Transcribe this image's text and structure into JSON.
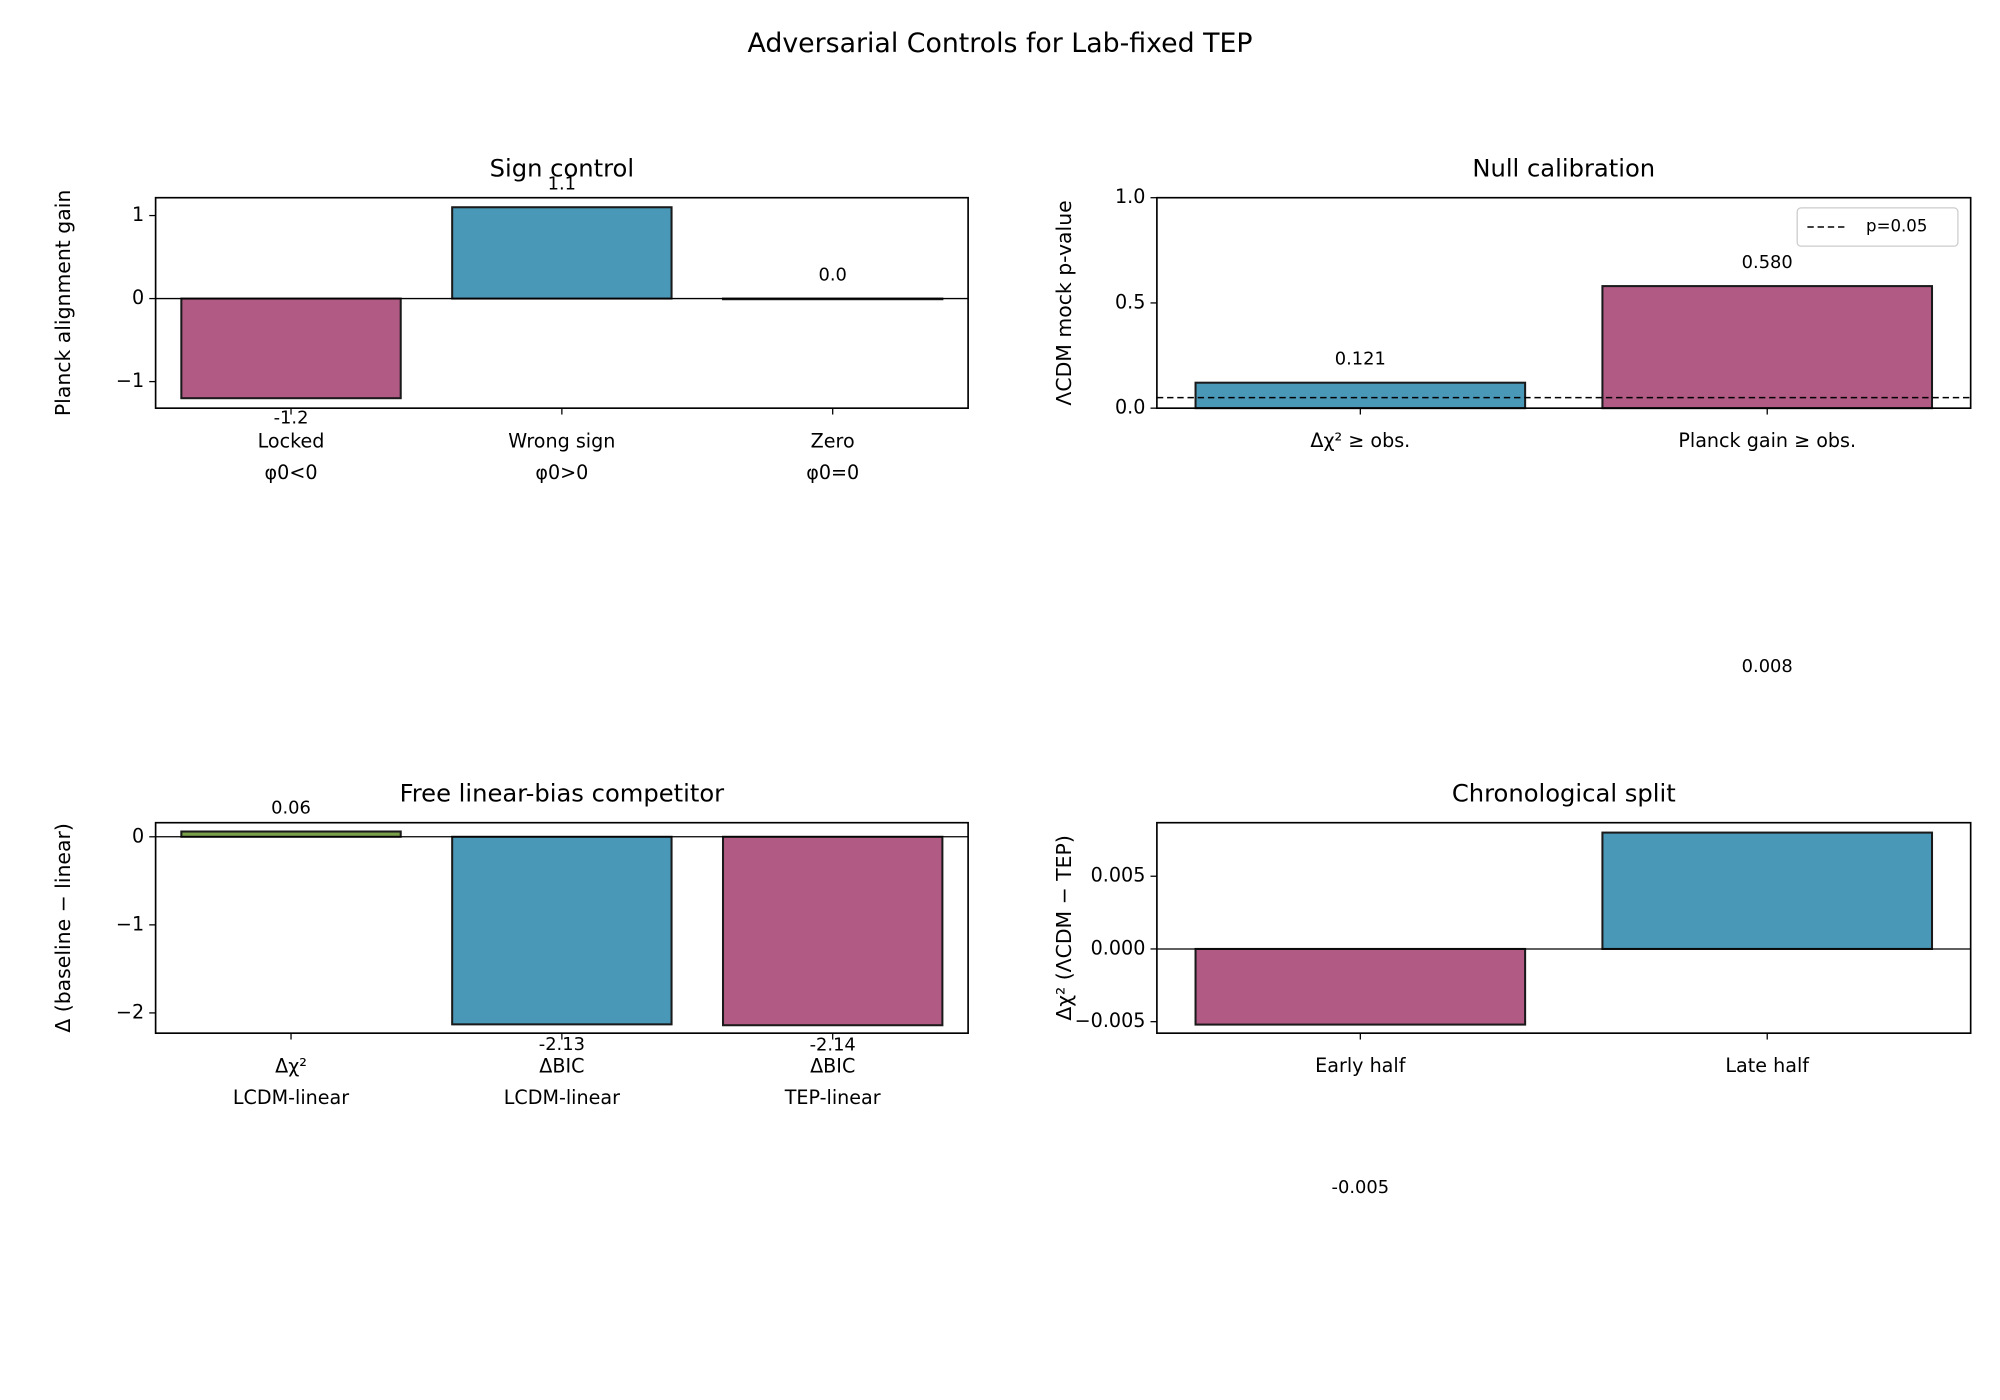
{
  "title": "Adversarial Controls for Lab-fixed TEP",
  "chart_data": [
    {
      "type": "bar",
      "title": "Sign control",
      "ylabel": "Planck alignment gain",
      "categories": [
        "Locked\nφ0<0",
        "Wrong sign\nφ0>0",
        "Zero\nφ0=0"
      ],
      "values": [
        -1.2,
        1.1,
        0.0
      ],
      "value_labels": [
        "-1.2",
        "1.1",
        "0.0"
      ],
      "colors": [
        "#b05a84",
        "#4a98b8",
        "#6a9a3a"
      ],
      "ylim": [
        -1.32,
        1.215
      ],
      "yticks": [
        {
          "value": -1,
          "label": "−1"
        },
        0,
        1
      ]
    },
    {
      "type": "bar",
      "title": "Null calibration",
      "ylabel": "ΛCDM mock p-value",
      "categories": [
        "Δχ² ≥ obs.",
        "Planck gain ≥ obs."
      ],
      "values": [
        0.121,
        0.58
      ],
      "value_labels": [
        "0.121",
        "0.580"
      ],
      "colors": [
        "#4a98b8",
        "#b05a84"
      ],
      "ylim": [
        0,
        1.0
      ],
      "yticks": [
        {
          "value": 0,
          "label": "0.0"
        },
        {
          "value": 0.5,
          "label": "0.5"
        },
        {
          "value": 1,
          "label": "1.0"
        }
      ],
      "threshold": {
        "name": "p=0.05",
        "value": 0.05
      },
      "legend": "upper right"
    },
    {
      "type": "bar",
      "title": "Free linear-bias competitor",
      "ylabel": "Δ (baseline − linear)",
      "categories": [
        "Δχ²\nLCDM-linear",
        "ΔBIC\nLCDM-linear",
        "ΔBIC\nTEP-linear"
      ],
      "values": [
        0.06,
        -2.13,
        -2.14
      ],
      "colors": [
        "#7aa04a",
        "#4a98b8",
        "#b05a84"
      ],
      "ylim": [
        -2.23,
        0.16
      ],
      "yticks": [
        {
          "value": -2,
          "label": "−2"
        },
        {
          "value": -1,
          "label": "−1"
        },
        0
      ]
    },
    {
      "type": "bar",
      "title": "Chronological split",
      "ylabel": "Δχ² (ΛCDM − TEP)",
      "categories": [
        "Early half",
        "Late half"
      ],
      "values": [
        -0.0052,
        0.008
      ],
      "value_labels": [
        "-0.005",
        "0.008"
      ],
      "colors": [
        "#b05a84",
        "#4a98b8"
      ],
      "ylim": [
        -0.00579,
        0.00868
      ],
      "yticks": [
        {
          "value": -0.005,
          "label": "−0.005"
        },
        {
          "value": 0,
          "label": "0.000"
        },
        {
          "value": 0.005,
          "label": "0.005"
        }
      ]
    }
  ]
}
